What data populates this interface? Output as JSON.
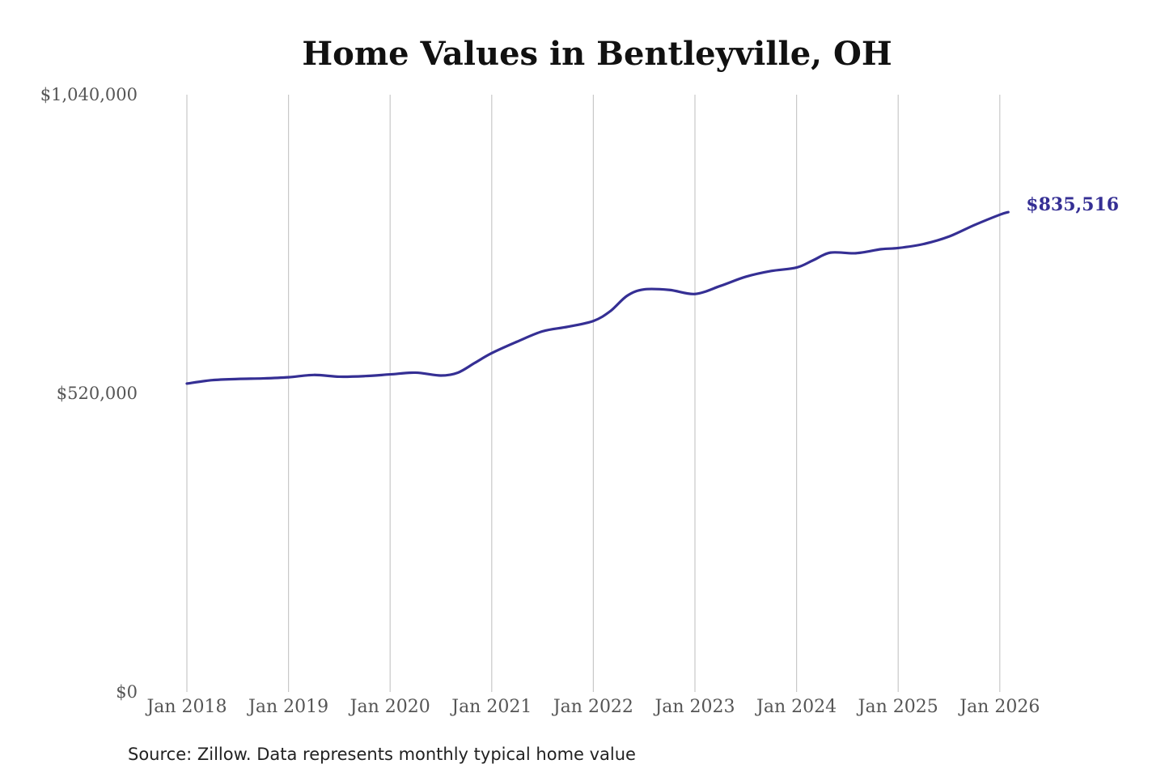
{
  "chart_data": {
    "type": "line",
    "title": "Home Values in Bentleyville, OH",
    "xlabel": "",
    "ylabel": "",
    "ylim": [
      0,
      1040000
    ],
    "y_ticks": [
      {
        "value": 0,
        "label": "$0"
      },
      {
        "value": 520000,
        "label": "$520,000"
      },
      {
        "value": 1040000,
        "label": "$1,040,000"
      }
    ],
    "x_ticks": [
      {
        "value": "2018-01",
        "label": "Jan 2018"
      },
      {
        "value": "2019-01",
        "label": "Jan 2019"
      },
      {
        "value": "2020-01",
        "label": "Jan 2020"
      },
      {
        "value": "2021-01",
        "label": "Jan 2021"
      },
      {
        "value": "2022-01",
        "label": "Jan 2022"
      },
      {
        "value": "2023-01",
        "label": "Jan 2023"
      },
      {
        "value": "2024-01",
        "label": "Jan 2024"
      },
      {
        "value": "2025-01",
        "label": "Jan 2025"
      },
      {
        "value": "2026-01",
        "label": "Jan 2026"
      }
    ],
    "grid": "vertical",
    "series": [
      {
        "color": "#352f94",
        "points": [
          {
            "x": "2018-01",
            "y": 537000
          },
          {
            "x": "2018-04",
            "y": 543000
          },
          {
            "x": "2018-07",
            "y": 545000
          },
          {
            "x": "2018-10",
            "y": 546000
          },
          {
            "x": "2019-01",
            "y": 548000
          },
          {
            "x": "2019-04",
            "y": 552000
          },
          {
            "x": "2019-07",
            "y": 549000
          },
          {
            "x": "2019-10",
            "y": 550000
          },
          {
            "x": "2020-01",
            "y": 553000
          },
          {
            "x": "2020-04",
            "y": 556000
          },
          {
            "x": "2020-07",
            "y": 551000
          },
          {
            "x": "2020-09",
            "y": 556000
          },
          {
            "x": "2020-11",
            "y": 573000
          },
          {
            "x": "2021-01",
            "y": 590000
          },
          {
            "x": "2021-04",
            "y": 610000
          },
          {
            "x": "2021-07",
            "y": 628000
          },
          {
            "x": "2021-10",
            "y": 636000
          },
          {
            "x": "2022-01",
            "y": 646000
          },
          {
            "x": "2022-03",
            "y": 663000
          },
          {
            "x": "2022-05",
            "y": 690000
          },
          {
            "x": "2022-07",
            "y": 701000
          },
          {
            "x": "2022-10",
            "y": 700000
          },
          {
            "x": "2023-01",
            "y": 693000
          },
          {
            "x": "2023-04",
            "y": 707000
          },
          {
            "x": "2023-07",
            "y": 723000
          },
          {
            "x": "2023-10",
            "y": 733000
          },
          {
            "x": "2024-01",
            "y": 739000
          },
          {
            "x": "2024-03",
            "y": 752000
          },
          {
            "x": "2024-05",
            "y": 765000
          },
          {
            "x": "2024-08",
            "y": 764000
          },
          {
            "x": "2024-11",
            "y": 771000
          },
          {
            "x": "2025-01",
            "y": 773000
          },
          {
            "x": "2025-04",
            "y": 780000
          },
          {
            "x": "2025-07",
            "y": 793000
          },
          {
            "x": "2025-10",
            "y": 813000
          },
          {
            "x": "2026-01",
            "y": 831000
          },
          {
            "x": "2026-02",
            "y": 835516
          }
        ],
        "end_label": "$835,516"
      }
    ]
  },
  "source_note": "Source: Zillow. Data represents monthly typical home value"
}
